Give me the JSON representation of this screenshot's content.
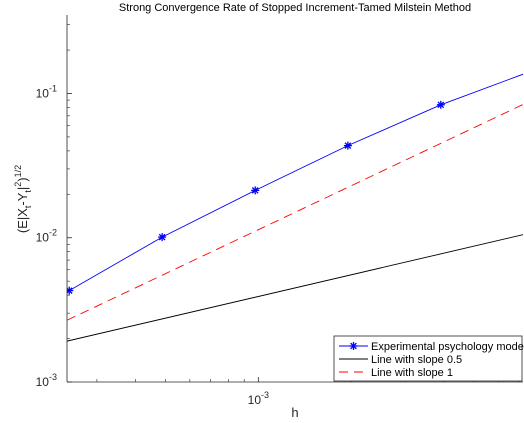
{
  "chart_data": {
    "type": "line",
    "title": "Strong Convergence Rate of Stopped Increment-Tamed Milstein Method",
    "xlabel": "h",
    "ylabel": "(E|X_t-Y_t|^2)^1/2",
    "x_scale": "log",
    "y_scale": "log",
    "xlim": [
      0.00024,
      0.0072
    ],
    "ylim": [
      0.001,
      0.35
    ],
    "x_ticks": [
      {
        "value": 0.001,
        "label": "10^-3"
      }
    ],
    "y_ticks": [
      {
        "value": 0.001,
        "label": "10^-3"
      },
      {
        "value": 0.01,
        "label": "10^-2"
      },
      {
        "value": 0.1,
        "label": "10^-1"
      }
    ],
    "grid": false,
    "legend_position": "bottom-right",
    "series": [
      {
        "name": "Experimental psychology model",
        "color": "#0000ff",
        "line_style": "solid",
        "marker": "asterisk",
        "x": [
          0.000244,
          0.000488,
          0.000977,
          0.00195,
          0.0039,
          0.0072
        ],
        "y": [
          0.0043,
          0.0101,
          0.0213,
          0.0435,
          0.0835,
          0.136
        ],
        "marker_indices": [
          0,
          1,
          2,
          3,
          4
        ]
      },
      {
        "name": "Line with slope 0.5",
        "color": "#000000",
        "line_style": "solid",
        "marker": "none",
        "x": [
          0.00024,
          0.0072
        ],
        "y": [
          0.00192,
          0.0105
        ]
      },
      {
        "name": "Line with slope 1",
        "color": "#ff0000",
        "line_style": "dashed",
        "marker": "none",
        "x": [
          0.00024,
          0.0072
        ],
        "y": [
          0.00268,
          0.0839
        ]
      }
    ]
  }
}
